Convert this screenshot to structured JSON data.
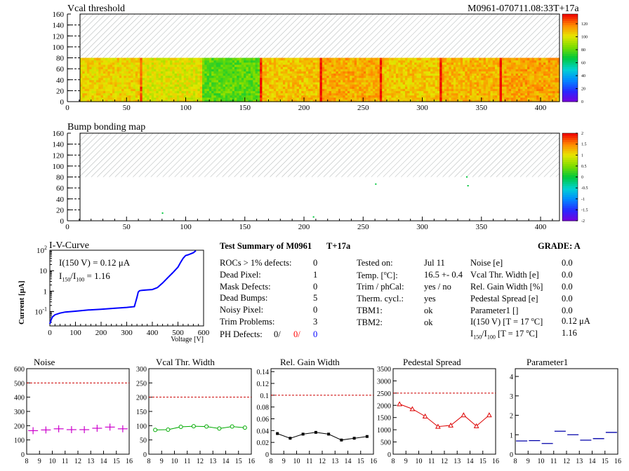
{
  "header": {
    "module_id": "M0961-070711.08:33T+17a"
  },
  "chart_data": [
    {
      "type": "heatmap",
      "title": "Vcal threshold",
      "xlim": [
        0,
        416
      ],
      "ylim": [
        0,
        160
      ],
      "x_ticks": [
        "0",
        "50",
        "100",
        "150",
        "200",
        "250",
        "300",
        "350",
        "400"
      ],
      "y_ticks": [
        "0",
        "20",
        "40",
        "60",
        "80",
        "100",
        "120",
        "140",
        "160"
      ],
      "colorbar_ticks": [
        "0",
        "20",
        "40",
        "60",
        "80",
        "100",
        "120"
      ],
      "colorbar_range": [
        0,
        135
      ],
      "filled_rows": [
        0,
        80
      ],
      "column_mean_values": [
        {
          "x": [
            0,
            52
          ],
          "value": 105
        },
        {
          "x": [
            52,
            104
          ],
          "value": 100
        },
        {
          "x": [
            104,
            156
          ],
          "value": 80
        },
        {
          "x": [
            156,
            208
          ],
          "value": 108
        },
        {
          "x": [
            208,
            260
          ],
          "value": 112
        },
        {
          "x": [
            260,
            312
          ],
          "value": 107
        },
        {
          "x": [
            312,
            364
          ],
          "value": 110
        },
        {
          "x": [
            364,
            416
          ],
          "value": 113
        }
      ],
      "hatched_region": "rows 80-160 (no data)"
    },
    {
      "type": "heatmap",
      "title": "Bump bonding map",
      "xlim": [
        0,
        416
      ],
      "ylim": [
        0,
        160
      ],
      "x_ticks": [
        "0",
        "50",
        "100",
        "150",
        "200",
        "250",
        "300",
        "350",
        "400"
      ],
      "y_ticks": [
        "0",
        "20",
        "40",
        "60",
        "80",
        "100",
        "120",
        "140",
        "160"
      ],
      "colorbar_ticks": [
        "-2",
        "-1.5",
        "-1",
        "-0.5",
        "0",
        "0.5",
        "1",
        "1.5",
        "2"
      ],
      "colorbar_range": [
        -2,
        2
      ],
      "points": [
        {
          "x": 256,
          "y": 67,
          "value": 0
        },
        {
          "x": 335,
          "y": 80,
          "value": 0
        },
        {
          "x": 336,
          "y": 64,
          "value": 0
        },
        {
          "x": 71,
          "y": 14,
          "value": 0
        },
        {
          "x": 202,
          "y": 7,
          "value": 0
        }
      ],
      "hatched_region": "rows 80-160 (no data)"
    },
    {
      "type": "line",
      "title": "I-V-Curve",
      "xlabel": "Voltage [V]",
      "ylabel": "Current [μA]",
      "yscale": "log",
      "xlim": [
        0,
        600
      ],
      "ylim": [
        0.02,
        100
      ],
      "x_ticks": [
        "0",
        "100",
        "200",
        "300",
        "400",
        "500",
        "600"
      ],
      "y_ticks": [
        {
          "v": 100,
          "label": "10",
          "sup": "2"
        },
        {
          "v": 10,
          "label": "10"
        },
        {
          "v": 1,
          "label": "1"
        },
        {
          "v": 0.1,
          "label": "10",
          "sup": "-1"
        }
      ],
      "annotation_1": "I(150 V) = 0.12 μA",
      "annotation_2": {
        "pre": "I",
        "sub1": "150",
        "mid": "/I",
        "sub2": "100",
        "post": " =  1.16"
      },
      "x": [
        0,
        5,
        10,
        20,
        40,
        60,
        100,
        150,
        200,
        250,
        300,
        330,
        340,
        345,
        350,
        360,
        380,
        400,
        420,
        440,
        460,
        480,
        500,
        510,
        520,
        530,
        540,
        560,
        570
      ],
      "y": [
        0.025,
        0.04,
        0.055,
        0.07,
        0.085,
        0.095,
        0.105,
        0.12,
        0.13,
        0.145,
        0.16,
        0.175,
        0.5,
        0.9,
        1.05,
        1.1,
        1.15,
        1.2,
        1.5,
        2.5,
        4.5,
        8,
        15,
        25,
        40,
        55,
        60,
        75,
        95
      ],
      "color": "#0000ff"
    },
    {
      "type": "scatter",
      "title": "Noise",
      "xlim": [
        8,
        16
      ],
      "ylim": [
        0,
        600
      ],
      "x_ticks": [
        "8",
        "9",
        "10",
        "11",
        "12",
        "13",
        "14",
        "15",
        "16"
      ],
      "y_ticks": [
        "0",
        "100",
        "200",
        "300",
        "400",
        "500",
        "600"
      ],
      "reference_line": 500,
      "x": [
        8.5,
        9.5,
        10.5,
        11.5,
        12.5,
        13.5,
        14.5,
        15.5
      ],
      "y": [
        165,
        170,
        178,
        172,
        172,
        182,
        190,
        178
      ],
      "color": "#cc00cc",
      "marker": "errorbar"
    },
    {
      "type": "line",
      "title": "Vcal Thr. Width",
      "xlim": [
        8,
        16
      ],
      "ylim": [
        0,
        300
      ],
      "x_ticks": [
        "8",
        "9",
        "10",
        "11",
        "12",
        "13",
        "14",
        "15",
        "16"
      ],
      "y_ticks": [
        "0",
        "50",
        "100",
        "150",
        "200",
        "250",
        "300"
      ],
      "reference_line": 200,
      "x": [
        8.5,
        9.5,
        10.5,
        11.5,
        12.5,
        13.5,
        14.5,
        15.5
      ],
      "y": [
        85,
        86,
        96,
        98,
        97,
        90,
        97,
        93
      ],
      "color": "#00aa00",
      "marker": "circle"
    },
    {
      "type": "line",
      "title": "Rel. Gain Width",
      "xlim": [
        8,
        16
      ],
      "ylim": [
        0,
        0.145
      ],
      "x_ticks": [
        "8",
        "9",
        "10",
        "11",
        "12",
        "13",
        "14",
        "15",
        "16"
      ],
      "y_ticks": [
        "0",
        "0.02",
        "0.04",
        "0.06",
        "0.08",
        "0.1",
        "0.12",
        "0.14"
      ],
      "reference_line": 0.1,
      "x": [
        8.5,
        9.5,
        10.5,
        11.5,
        12.5,
        13.5,
        14.5,
        15.5
      ],
      "y": [
        0.035,
        0.027,
        0.034,
        0.037,
        0.034,
        0.024,
        0.027,
        0.03
      ],
      "color": "#000000",
      "marker": "square"
    },
    {
      "type": "line",
      "title": "Pedestal Spread",
      "xlim": [
        8,
        16
      ],
      "ylim": [
        0,
        3500
      ],
      "x_ticks": [
        "8",
        "9",
        "10",
        "11",
        "12",
        "13",
        "14",
        "15",
        "16"
      ],
      "y_ticks": [
        "0",
        "500",
        "1000",
        "1500",
        "2000",
        "2500",
        "3000",
        "3500"
      ],
      "reference_line": 2500,
      "x": [
        8.5,
        9.5,
        10.5,
        11.5,
        12.5,
        13.5,
        14.5,
        15.5
      ],
      "y": [
        2050,
        1850,
        1550,
        1130,
        1180,
        1600,
        1150,
        1600
      ],
      "color": "#dd0000",
      "marker": "triangle"
    },
    {
      "type": "scatter",
      "title": "Parameter1",
      "xlim": [
        8,
        16
      ],
      "ylim": [
        0,
        4.4
      ],
      "x_ticks": [
        "8",
        "9",
        "10",
        "11",
        "12",
        "13",
        "14",
        "15",
        "16"
      ],
      "y_ticks": [
        "0",
        "1",
        "2",
        "3",
        "4"
      ],
      "x": [
        8.5,
        9.5,
        10.5,
        11.5,
        12.5,
        13.5,
        14.5,
        15.5
      ],
      "y": [
        0.68,
        0.7,
        0.55,
        1.18,
        1.0,
        0.72,
        0.8,
        1.12
      ],
      "color": "#0000aa",
      "marker": "hbar"
    }
  ],
  "summary": {
    "title": "Test Summary of M0961",
    "temp_label": "T+17a",
    "grade": "GRADE:  A",
    "defects": [
      {
        "label": "ROCs > 1% defects:",
        "value": "0"
      },
      {
        "label": "Dead Pixel:",
        "value": "1"
      },
      {
        "label": "Mask Defects:",
        "value": "0"
      },
      {
        "label": "Dead Bumps:",
        "value": "5"
      },
      {
        "label": "Noisy Pixel:",
        "value": "0"
      },
      {
        "label": "Trim Problems:",
        "value": "3"
      }
    ],
    "ph_defects": {
      "label": "PH Defects:",
      "v1": "0/",
      "v2": "0/",
      "v3": "0"
    },
    "conditions": [
      {
        "label": "Tested on:",
        "value": "Jul 11"
      },
      {
        "label": "Temp. [",
        "deg": "o",
        "label_end": "C]:",
        "value": "16.5 +- 0.4"
      },
      {
        "label": "Trim / phCal:",
        "value": "yes / no"
      },
      {
        "label": "Therm. cycl.:",
        "value": "yes"
      },
      {
        "label": "TBM1:",
        "value": "ok"
      },
      {
        "label": "TBM2:",
        "value": "ok"
      }
    ],
    "params": [
      {
        "label": "Noise [e]",
        "value": "0.0"
      },
      {
        "label": "Vcal Thr. Width [e]",
        "value": "0.0"
      },
      {
        "label": "Rel. Gain Width [%]",
        "value": "0.0"
      },
      {
        "label": "Pedestal Spread [e]",
        "value": "0.0"
      },
      {
        "label": "Parameter1 []",
        "value": "0.0"
      }
    ],
    "i150": {
      "label": "I(150 V) [T = 17 ",
      "deg": "o",
      "label_end": "C]",
      "value": "0.12 μA"
    },
    "ratio": {
      "pre": "I",
      "sub1": "150",
      "mid": "/I",
      "sub2": "100",
      "post": "  [T = 17 ",
      "deg": "o",
      "label_end": "C]",
      "value": "1.16"
    }
  },
  "colors": {
    "ph_defects_v2": "#ff0000",
    "ph_defects_v3": "#0000ff",
    "reference": "#cc0000"
  }
}
